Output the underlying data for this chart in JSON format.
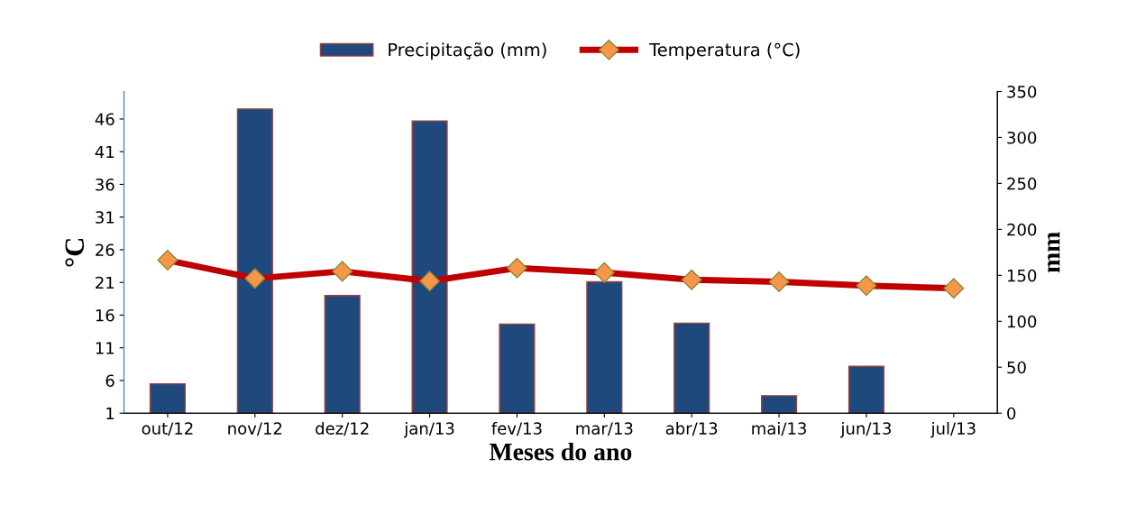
{
  "chart_data": {
    "type": "bar",
    "xlabel": "Meses do ano",
    "ylabel": "°C",
    "y2label": "mm",
    "categories": [
      "out/12",
      "nov/12",
      "dez/12",
      "jan/13",
      "fev/13",
      "mar/13",
      "abr/13",
      "mai/13",
      "jun/13",
      "jul/13"
    ],
    "series": [
      {
        "name": "Precipitação (mm)",
        "axis": "y2",
        "color": "#1f497d",
        "values": [
          32,
          331,
          128,
          318,
          97,
          143,
          98,
          19,
          51,
          0
        ]
      },
      {
        "name": "Temperatura (°C)",
        "type": "line",
        "axis": "y",
        "color": "#c00000",
        "marker": "diamond",
        "values": [
          24.4,
          21.6,
          22.7,
          21.2,
          23.2,
          22.5,
          21.4,
          21.1,
          20.5,
          20.1
        ]
      }
    ],
    "ylim": [
      1,
      50.2
    ],
    "yticks": [
      1,
      6,
      11,
      16,
      21,
      26,
      31,
      36,
      41,
      46
    ],
    "y2lim": [
      0,
      350
    ],
    "y2ticks": [
      0,
      50,
      100,
      150,
      200,
      250,
      300,
      350
    ],
    "legend": "top",
    "grid": false
  }
}
